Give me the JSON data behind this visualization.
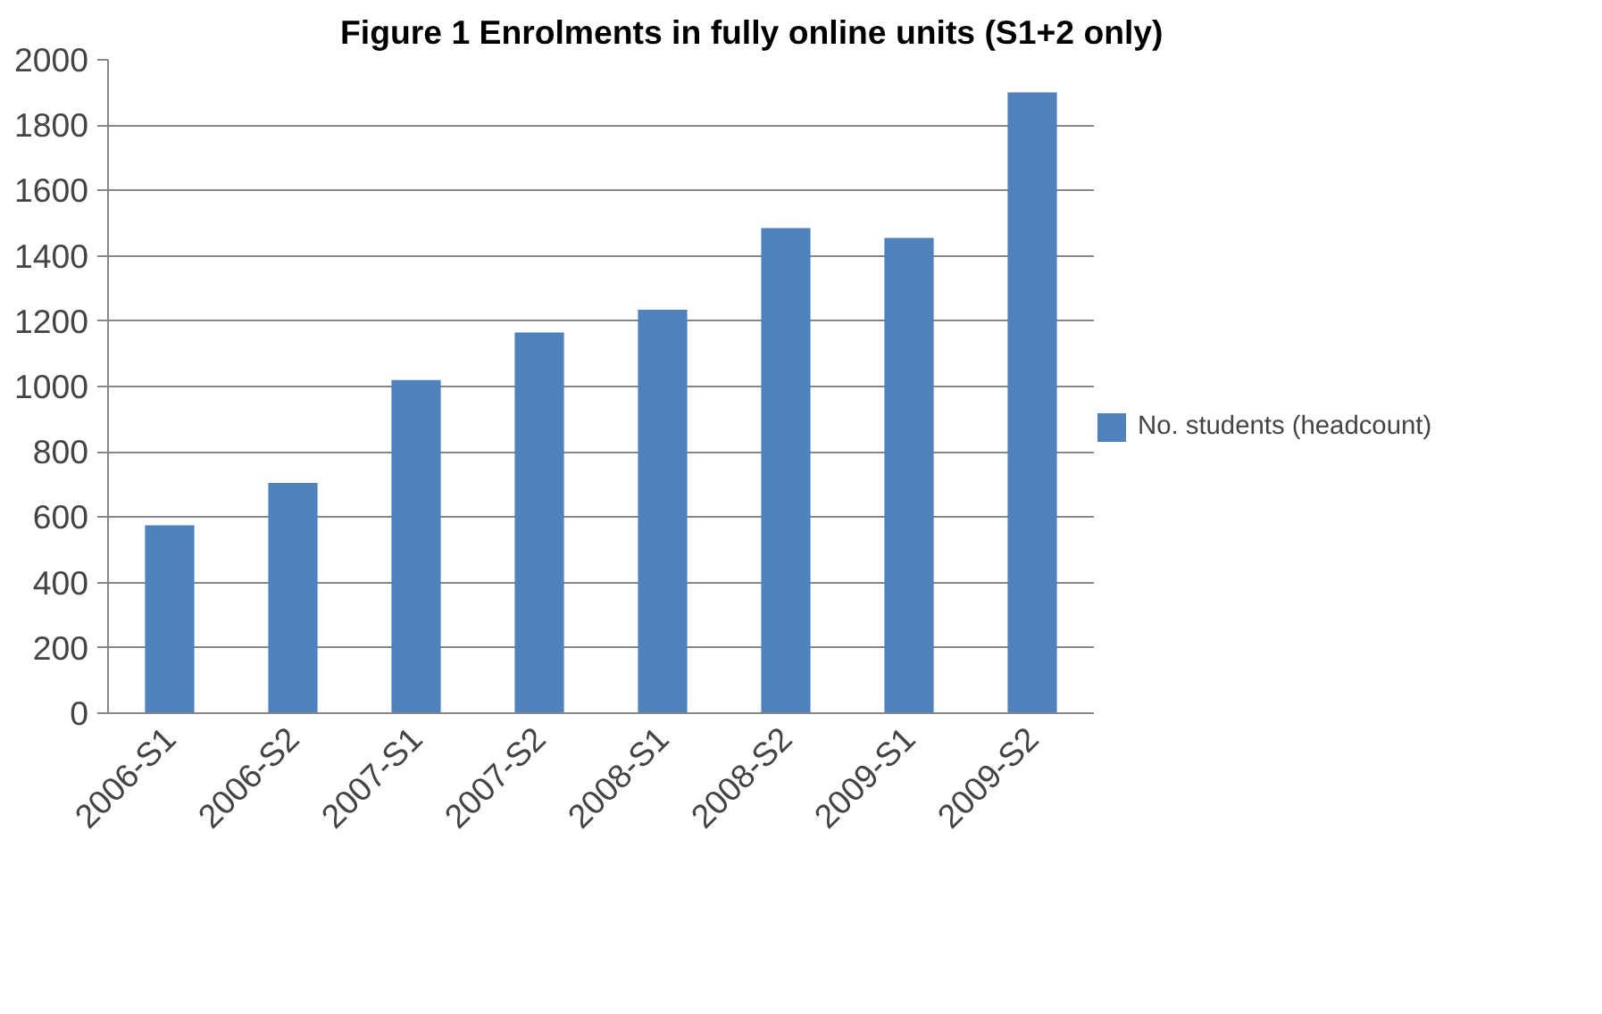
{
  "chart_data": {
    "type": "bar",
    "title": "Figure 1 Enrolments in fully online units (S1+2 only)",
    "categories": [
      "2006-S1",
      "2006-S2",
      "2007-S1",
      "2007-S2",
      "2008-S1",
      "2008-S2",
      "2009-S1",
      "2009-S2"
    ],
    "series": [
      {
        "name": "No. students (headcount)",
        "color": "#4f81bd",
        "values": [
          575,
          705,
          1020,
          1165,
          1235,
          1485,
          1455,
          1900
        ]
      }
    ],
    "ylim": [
      0,
      2000
    ],
    "yticks": [
      0,
      200,
      400,
      600,
      800,
      1000,
      1200,
      1400,
      1600,
      1800,
      2000
    ],
    "grid": "y",
    "legend": "right"
  }
}
